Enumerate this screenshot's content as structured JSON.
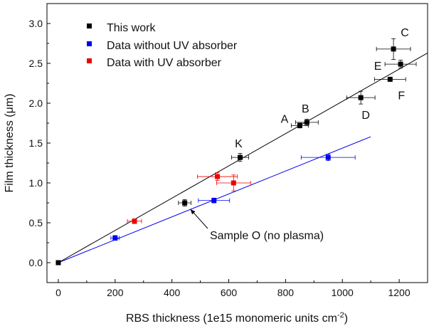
{
  "chart_data": {
    "type": "scatter",
    "xlabel": "RBS thickness (1e15 monomeric units cm",
    "xlabel_sup": "-2",
    "xlabel_end": ")",
    "ylabel": "Film thickness (μm)",
    "xlim": [
      -40,
      1300
    ],
    "ylim": [
      -0.25,
      3.25
    ],
    "xticks": [
      0,
      200,
      400,
      600,
      800,
      1000,
      1200
    ],
    "yticks": [
      0.0,
      0.5,
      1.0,
      1.5,
      2.0,
      2.5,
      3.0
    ],
    "legend_position": "top-left",
    "series": [
      {
        "name": "This work",
        "color": "#000000",
        "points": [
          {
            "x": 0,
            "y": 0.0,
            "xerr": 0,
            "yerr": 0,
            "label": ""
          },
          {
            "x": 445,
            "y": 0.75,
            "xerr": 22,
            "yerr": 0.04,
            "label": ""
          },
          {
            "x": 640,
            "y": 1.32,
            "xerr": 30,
            "yerr": 0.05,
            "label": "K"
          },
          {
            "x": 850,
            "y": 1.72,
            "xerr": 30,
            "yerr": 0.03,
            "label": "A"
          },
          {
            "x": 875,
            "y": 1.76,
            "xerr": 40,
            "yerr": 0.04,
            "label": "B"
          },
          {
            "x": 1065,
            "y": 2.07,
            "xerr": 50,
            "yerr": 0.08,
            "label": "D"
          },
          {
            "x": 1168,
            "y": 2.3,
            "xerr": 55,
            "yerr": 0.0,
            "label": "F"
          },
          {
            "x": 1180,
            "y": 2.68,
            "xerr": 60,
            "yerr": 0.13,
            "label": "C"
          },
          {
            "x": 1205,
            "y": 2.49,
            "xerr": 55,
            "yerr": 0.05,
            "label": "E"
          }
        ]
      },
      {
        "name": "Data without UV absorber",
        "color": "#0000ee",
        "points": [
          {
            "x": 200,
            "y": 0.31,
            "xerr": 15,
            "yerr": 0.03
          },
          {
            "x": 548,
            "y": 0.78,
            "xerr": 55,
            "yerr": 0.03
          },
          {
            "x": 950,
            "y": 1.32,
            "xerr": 95,
            "yerr": 0.04
          }
        ]
      },
      {
        "name": "Data with UV absorber",
        "color": "#ee0000",
        "points": [
          {
            "x": 268,
            "y": 0.52,
            "xerr": 25,
            "yerr": 0.03
          },
          {
            "x": 560,
            "y": 1.08,
            "xerr": 70,
            "yerr": 0.05
          },
          {
            "x": 617,
            "y": 1.0,
            "xerr": 60,
            "yerr": 0.1
          }
        ]
      }
    ],
    "fit_lines": [
      {
        "name": "This work fit",
        "color": "#000000",
        "x": [
          0,
          1300
        ],
        "y": [
          0.0,
          2.63
        ]
      },
      {
        "name": "Blue fit",
        "color": "#0000ee",
        "x": [
          0,
          1100
        ],
        "y": [
          0.0,
          1.58
        ]
      }
    ],
    "annotation": {
      "text": "Sample O (no plasma)",
      "target": {
        "x": 465,
        "y": 0.67
      }
    }
  }
}
